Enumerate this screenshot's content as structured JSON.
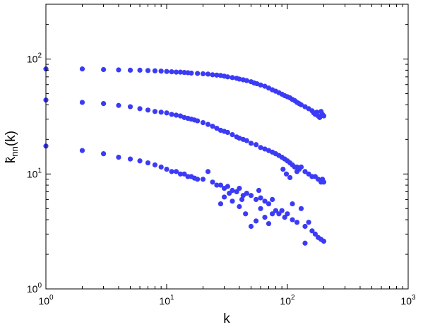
{
  "chart_data": {
    "type": "scatter",
    "title": "",
    "xlabel": "k",
    "ylabel": "k̄nn(k)",
    "ylabel_parts": {
      "base": "k̄",
      "sub": "nn",
      "suffix": "(k)"
    },
    "xscale": "log",
    "yscale": "log",
    "xlim": [
      1,
      1000
    ],
    "ylim": [
      1,
      300
    ],
    "grid": false,
    "legend": "none",
    "x_ticks": [
      {
        "base": "10",
        "exp": "0"
      },
      {
        "base": "10",
        "exp": "1"
      },
      {
        "base": "10",
        "exp": "2"
      },
      {
        "base": "10",
        "exp": "3"
      }
    ],
    "y_ticks": [
      {
        "base": "10",
        "exp": "0"
      },
      {
        "base": "10",
        "exp": "1"
      },
      {
        "base": "10",
        "exp": "2"
      }
    ],
    "x_tick_values": [
      1,
      10,
      100,
      1000
    ],
    "y_tick_values": [
      1,
      10,
      100
    ],
    "marker_color": "#3b3bf5",
    "series": [
      {
        "points": [
          [
            1,
            82
          ],
          [
            2,
            82
          ],
          [
            3,
            81
          ],
          [
            4,
            80.5
          ],
          [
            5,
            80
          ],
          [
            6,
            80
          ],
          [
            7,
            79.5
          ],
          [
            8,
            79
          ],
          [
            9,
            78.5
          ],
          [
            10,
            78
          ],
          [
            11,
            77.5
          ],
          [
            12,
            77
          ],
          [
            13,
            77
          ],
          [
            14,
            76.5
          ],
          [
            15,
            76
          ],
          [
            16,
            75.5
          ],
          [
            18,
            75
          ],
          [
            20,
            74.5
          ],
          [
            22,
            74
          ],
          [
            24,
            73
          ],
          [
            26,
            72.5
          ],
          [
            28,
            72
          ],
          [
            30,
            71
          ],
          [
            32,
            70
          ],
          [
            35,
            69
          ],
          [
            38,
            68
          ],
          [
            40,
            67
          ],
          [
            43,
            66
          ],
          [
            46,
            65
          ],
          [
            50,
            63.5
          ],
          [
            53,
            62
          ],
          [
            56,
            61
          ],
          [
            60,
            59.5
          ],
          [
            65,
            58
          ],
          [
            70,
            56
          ],
          [
            75,
            54
          ],
          [
            80,
            52.5
          ],
          [
            85,
            51
          ],
          [
            90,
            49.5
          ],
          [
            95,
            48
          ],
          [
            100,
            47
          ],
          [
            105,
            46
          ],
          [
            110,
            44.5
          ],
          [
            115,
            43.5
          ],
          [
            120,
            42
          ],
          [
            125,
            41
          ],
          [
            130,
            40
          ],
          [
            140,
            38.5
          ],
          [
            150,
            37
          ],
          [
            160,
            35.5
          ],
          [
            165,
            34
          ],
          [
            170,
            33
          ],
          [
            175,
            34.5
          ],
          [
            180,
            32
          ],
          [
            185,
            31
          ],
          [
            190,
            35
          ],
          [
            195,
            33
          ],
          [
            200,
            32
          ]
        ]
      },
      {
        "points": [
          [
            1,
            44
          ],
          [
            2,
            42
          ],
          [
            3,
            41
          ],
          [
            4,
            39.5
          ],
          [
            5,
            38.5
          ],
          [
            6,
            37
          ],
          [
            7,
            36
          ],
          [
            8,
            35
          ],
          [
            9,
            34.5
          ],
          [
            10,
            34
          ],
          [
            11,
            33
          ],
          [
            12,
            32.5
          ],
          [
            13,
            32
          ],
          [
            14,
            31
          ],
          [
            15,
            30.5
          ],
          [
            16,
            30
          ],
          [
            17,
            29.5
          ],
          [
            18,
            29
          ],
          [
            20,
            28
          ],
          [
            22,
            27
          ],
          [
            24,
            26
          ],
          [
            26,
            25
          ],
          [
            28,
            24
          ],
          [
            30,
            23.5
          ],
          [
            32,
            23
          ],
          [
            35,
            22
          ],
          [
            38,
            21
          ],
          [
            40,
            20.5
          ],
          [
            43,
            20
          ],
          [
            46,
            19.5
          ],
          [
            50,
            18.5
          ],
          [
            55,
            18
          ],
          [
            60,
            17
          ],
          [
            65,
            16.5
          ],
          [
            70,
            16
          ],
          [
            75,
            15.5
          ],
          [
            80,
            15
          ],
          [
            85,
            14.5
          ],
          [
            90,
            14
          ],
          [
            95,
            13.5
          ],
          [
            100,
            13
          ],
          [
            105,
            12.5
          ],
          [
            110,
            12
          ],
          [
            115,
            11.5
          ],
          [
            120,
            11.5
          ],
          [
            125,
            11
          ],
          [
            130,
            11.5
          ],
          [
            140,
            10.5
          ],
          [
            150,
            10
          ],
          [
            160,
            9.5
          ],
          [
            170,
            9.5
          ],
          [
            180,
            9
          ],
          [
            190,
            8.5
          ],
          [
            195,
            9
          ],
          [
            200,
            8.5
          ],
          [
            92,
            11
          ],
          [
            98,
            10
          ],
          [
            105,
            9.3
          ],
          [
            120,
            10.5
          ]
        ]
      },
      {
        "points": [
          [
            1,
            17.5
          ],
          [
            2,
            16
          ],
          [
            3,
            15
          ],
          [
            4,
            14
          ],
          [
            5,
            13.5
          ],
          [
            6,
            13
          ],
          [
            7,
            12.5
          ],
          [
            8,
            12
          ],
          [
            9,
            11.5
          ],
          [
            10,
            11
          ],
          [
            11,
            10.5
          ],
          [
            12,
            10.5
          ],
          [
            13,
            10
          ],
          [
            14,
            10
          ],
          [
            15,
            9.5
          ],
          [
            16,
            9.5
          ],
          [
            17,
            9.2
          ],
          [
            18,
            9
          ],
          [
            20,
            9
          ],
          [
            22,
            10.5
          ],
          [
            24,
            8.5
          ],
          [
            26,
            8
          ],
          [
            28,
            8
          ],
          [
            30,
            7.5
          ],
          [
            32,
            7.8
          ],
          [
            35,
            7.2
          ],
          [
            38,
            7
          ],
          [
            40,
            7.5
          ],
          [
            43,
            6.5
          ],
          [
            46,
            6.8
          ],
          [
            50,
            6.5
          ],
          [
            55,
            6
          ],
          [
            60,
            6.2
          ],
          [
            65,
            5.8
          ],
          [
            70,
            5.5
          ],
          [
            75,
            4.5
          ],
          [
            80,
            4.8
          ],
          [
            85,
            4.5
          ],
          [
            90,
            4.8
          ],
          [
            95,
            4.2
          ],
          [
            100,
            4.5
          ],
          [
            110,
            4
          ],
          [
            120,
            3.8
          ],
          [
            130,
            5
          ],
          [
            140,
            3.5
          ],
          [
            150,
            3.8
          ],
          [
            160,
            3.2
          ],
          [
            170,
            3
          ],
          [
            180,
            2.8
          ],
          [
            190,
            2.7
          ],
          [
            200,
            2.6
          ],
          [
            140,
            2.5
          ],
          [
            60,
            5
          ],
          [
            65,
            4.2
          ],
          [
            70,
            3.7
          ],
          [
            55,
            3.9
          ],
          [
            50,
            3.5
          ],
          [
            45,
            4.5
          ],
          [
            40,
            5.2
          ],
          [
            35,
            5.8
          ],
          [
            30,
            6.3
          ],
          [
            28,
            5.5
          ],
          [
            58,
            7.2
          ],
          [
            75,
            6
          ],
          [
            42,
            6
          ],
          [
            33,
            6.8
          ],
          [
            110,
            5.5
          ]
        ]
      }
    ]
  }
}
